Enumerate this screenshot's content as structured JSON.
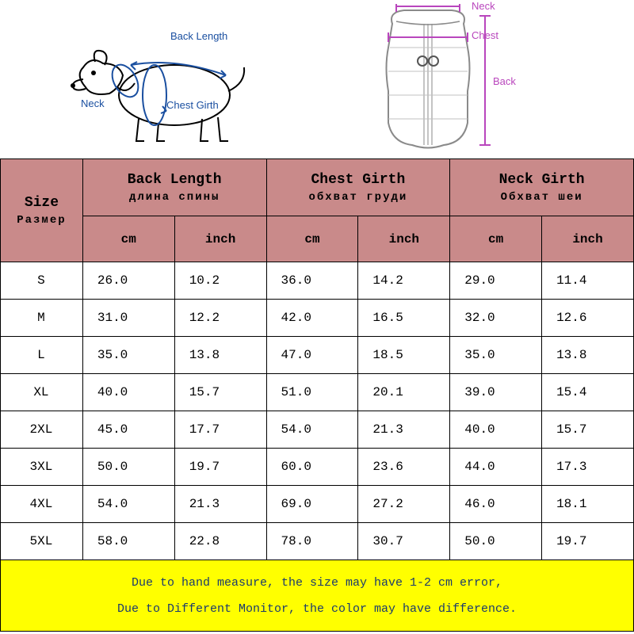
{
  "diagram": {
    "dog_labels": {
      "back": "Back Length",
      "neck": "Neck",
      "chest": "Chest Girth"
    },
    "vest_labels": {
      "neck": "Neck",
      "chest": "Chest",
      "back": "Back"
    },
    "dog_label_color": "#1a4fa0",
    "vest_label_color": "#b946bd",
    "vest_outline_color": "#8a8a8a"
  },
  "table": {
    "header_bg": "#c98a8a",
    "size_header": {
      "main": "Size",
      "sub": "Размер"
    },
    "columns": [
      {
        "main": "Back Length",
        "sub": "длина спины"
      },
      {
        "main": "Chest Girth",
        "sub": "обхват груди"
      },
      {
        "main": "Neck Girth",
        "sub": "Обхват шеи"
      }
    ],
    "unit_labels": [
      "cm",
      "inch",
      "cm",
      "inch",
      "cm",
      "inch"
    ],
    "rows": [
      {
        "size": "S",
        "v": [
          "26.0",
          "10.2",
          "36.0",
          "14.2",
          "29.0",
          "11.4"
        ]
      },
      {
        "size": "M",
        "v": [
          "31.0",
          "12.2",
          "42.0",
          "16.5",
          "32.0",
          "12.6"
        ]
      },
      {
        "size": "L",
        "v": [
          "35.0",
          "13.8",
          "47.0",
          "18.5",
          "35.0",
          "13.8"
        ]
      },
      {
        "size": "XL",
        "v": [
          "40.0",
          "15.7",
          "51.0",
          "20.1",
          "39.0",
          "15.4"
        ]
      },
      {
        "size": "2XL",
        "v": [
          "45.0",
          "17.7",
          "54.0",
          "21.3",
          "40.0",
          "15.7"
        ]
      },
      {
        "size": "3XL",
        "v": [
          "50.0",
          "19.7",
          "60.0",
          "23.6",
          "44.0",
          "17.3"
        ]
      },
      {
        "size": "4XL",
        "v": [
          "54.0",
          "21.3",
          "69.0",
          "27.2",
          "46.0",
          "18.1"
        ]
      },
      {
        "size": "5XL",
        "v": [
          "58.0",
          "22.8",
          "78.0",
          "30.7",
          "50.0",
          "19.7"
        ]
      }
    ]
  },
  "note": {
    "bg": "#ffff00",
    "text_color": "#1a3a6e",
    "line1": "Due to hand measure, the size may have 1-2 cm error,",
    "line2": "Due to Different Monitor, the color may have difference."
  }
}
